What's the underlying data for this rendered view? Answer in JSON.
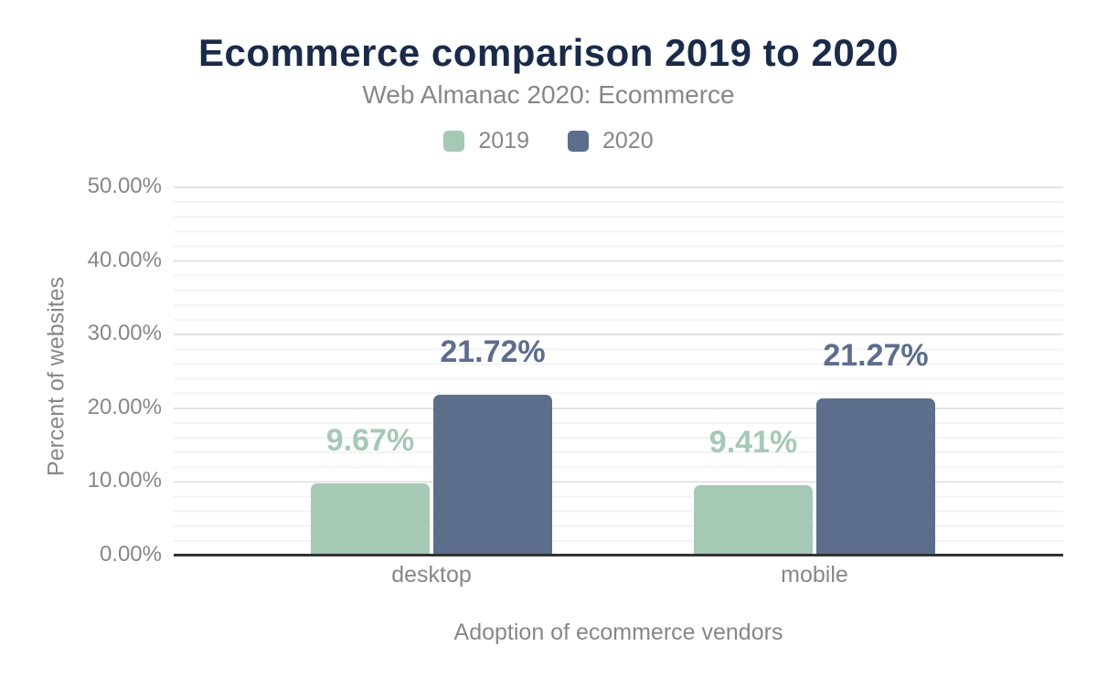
{
  "header": {
    "title": "Ecommerce comparison 2019 to 2020",
    "subtitle": "Web Almanac 2020: Ecommerce"
  },
  "legend": [
    {
      "label": "2019",
      "color": "#a5c9b5"
    },
    {
      "label": "2020",
      "color": "#5d6e8c"
    }
  ],
  "chart_data": {
    "type": "bar",
    "title": "Ecommerce comparison 2019 to 2020",
    "subtitle": "Web Almanac 2020: Ecommerce",
    "categories": [
      "desktop",
      "mobile"
    ],
    "series": [
      {
        "name": "2019",
        "color": "#a5c9b5",
        "values": [
          9.67,
          9.41
        ],
        "labels": [
          "9.67%",
          "9.41%"
        ]
      },
      {
        "name": "2020",
        "color": "#5d6e8c",
        "values": [
          21.72,
          21.27
        ],
        "labels": [
          "21.72%",
          "21.27%"
        ]
      }
    ],
    "xlabel": "Adoption of ecommerce vendors",
    "ylabel": "Percent of websites",
    "ylim": [
      0,
      50
    ],
    "yticks": [
      "0.00%",
      "10.00%",
      "20.00%",
      "30.00%",
      "40.00%",
      "50.00%"
    ],
    "grid": {
      "on": true,
      "major_step_pct": 10,
      "minor_step_pct": 2
    },
    "legend_position": "top"
  },
  "colors": {
    "title": "#1a2b49",
    "text_gray": "#878787",
    "axis_line": "#333333",
    "grid_major": "#e3e3e3",
    "grid_minor": "#f3f3f3",
    "background": "#ffffff"
  }
}
